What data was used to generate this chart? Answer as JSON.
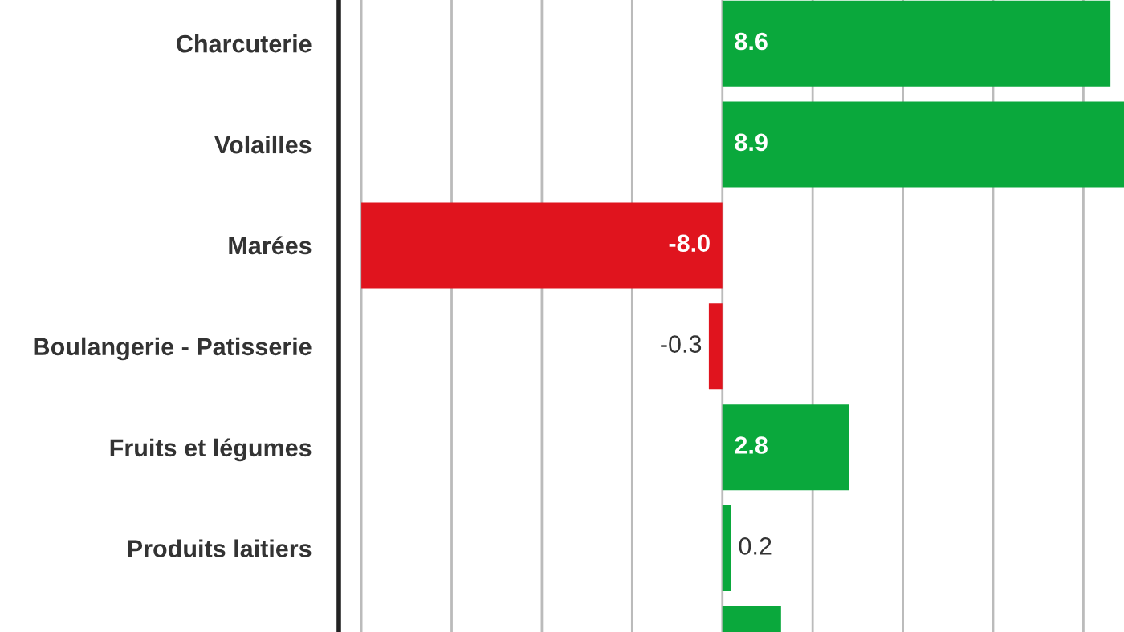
{
  "chart_data": {
    "type": "bar",
    "orientation": "horizontal",
    "categories": [
      "Charcuterie",
      "Volailles",
      "Marées",
      "Boulangerie - Patisserie",
      "Fruits et légumes",
      "Produits laitiers",
      null
    ],
    "values": [
      8.6,
      8.9,
      -8.0,
      -0.3,
      2.8,
      0.2,
      1.3
    ],
    "colors": [
      "#0aa83c",
      "#0aa83c",
      "#e0141e",
      "#e0141e",
      "#0aa83c",
      "#0aa83c",
      "#0aa83c"
    ],
    "value_labels": [
      "8.6",
      "8.9",
      "-8.0",
      "-0.3",
      "2.8",
      "0.2",
      null
    ],
    "xlim": [
      -8.5,
      8.9
    ],
    "xticks": [
      {
        "value": -8,
        "label": null
      },
      {
        "value": -6,
        "label": null
      },
      {
        "value": -4,
        "label": null
      },
      {
        "value": -2,
        "label": null
      },
      {
        "value": 0,
        "label": null
      },
      {
        "value": 2,
        "label": null
      },
      {
        "value": 4,
        "label": null
      },
      {
        "value": 6,
        "label": null
      },
      {
        "value": 8,
        "label": null
      }
    ],
    "grid": "x",
    "tick_labels": "y",
    "legend": false
  }
}
